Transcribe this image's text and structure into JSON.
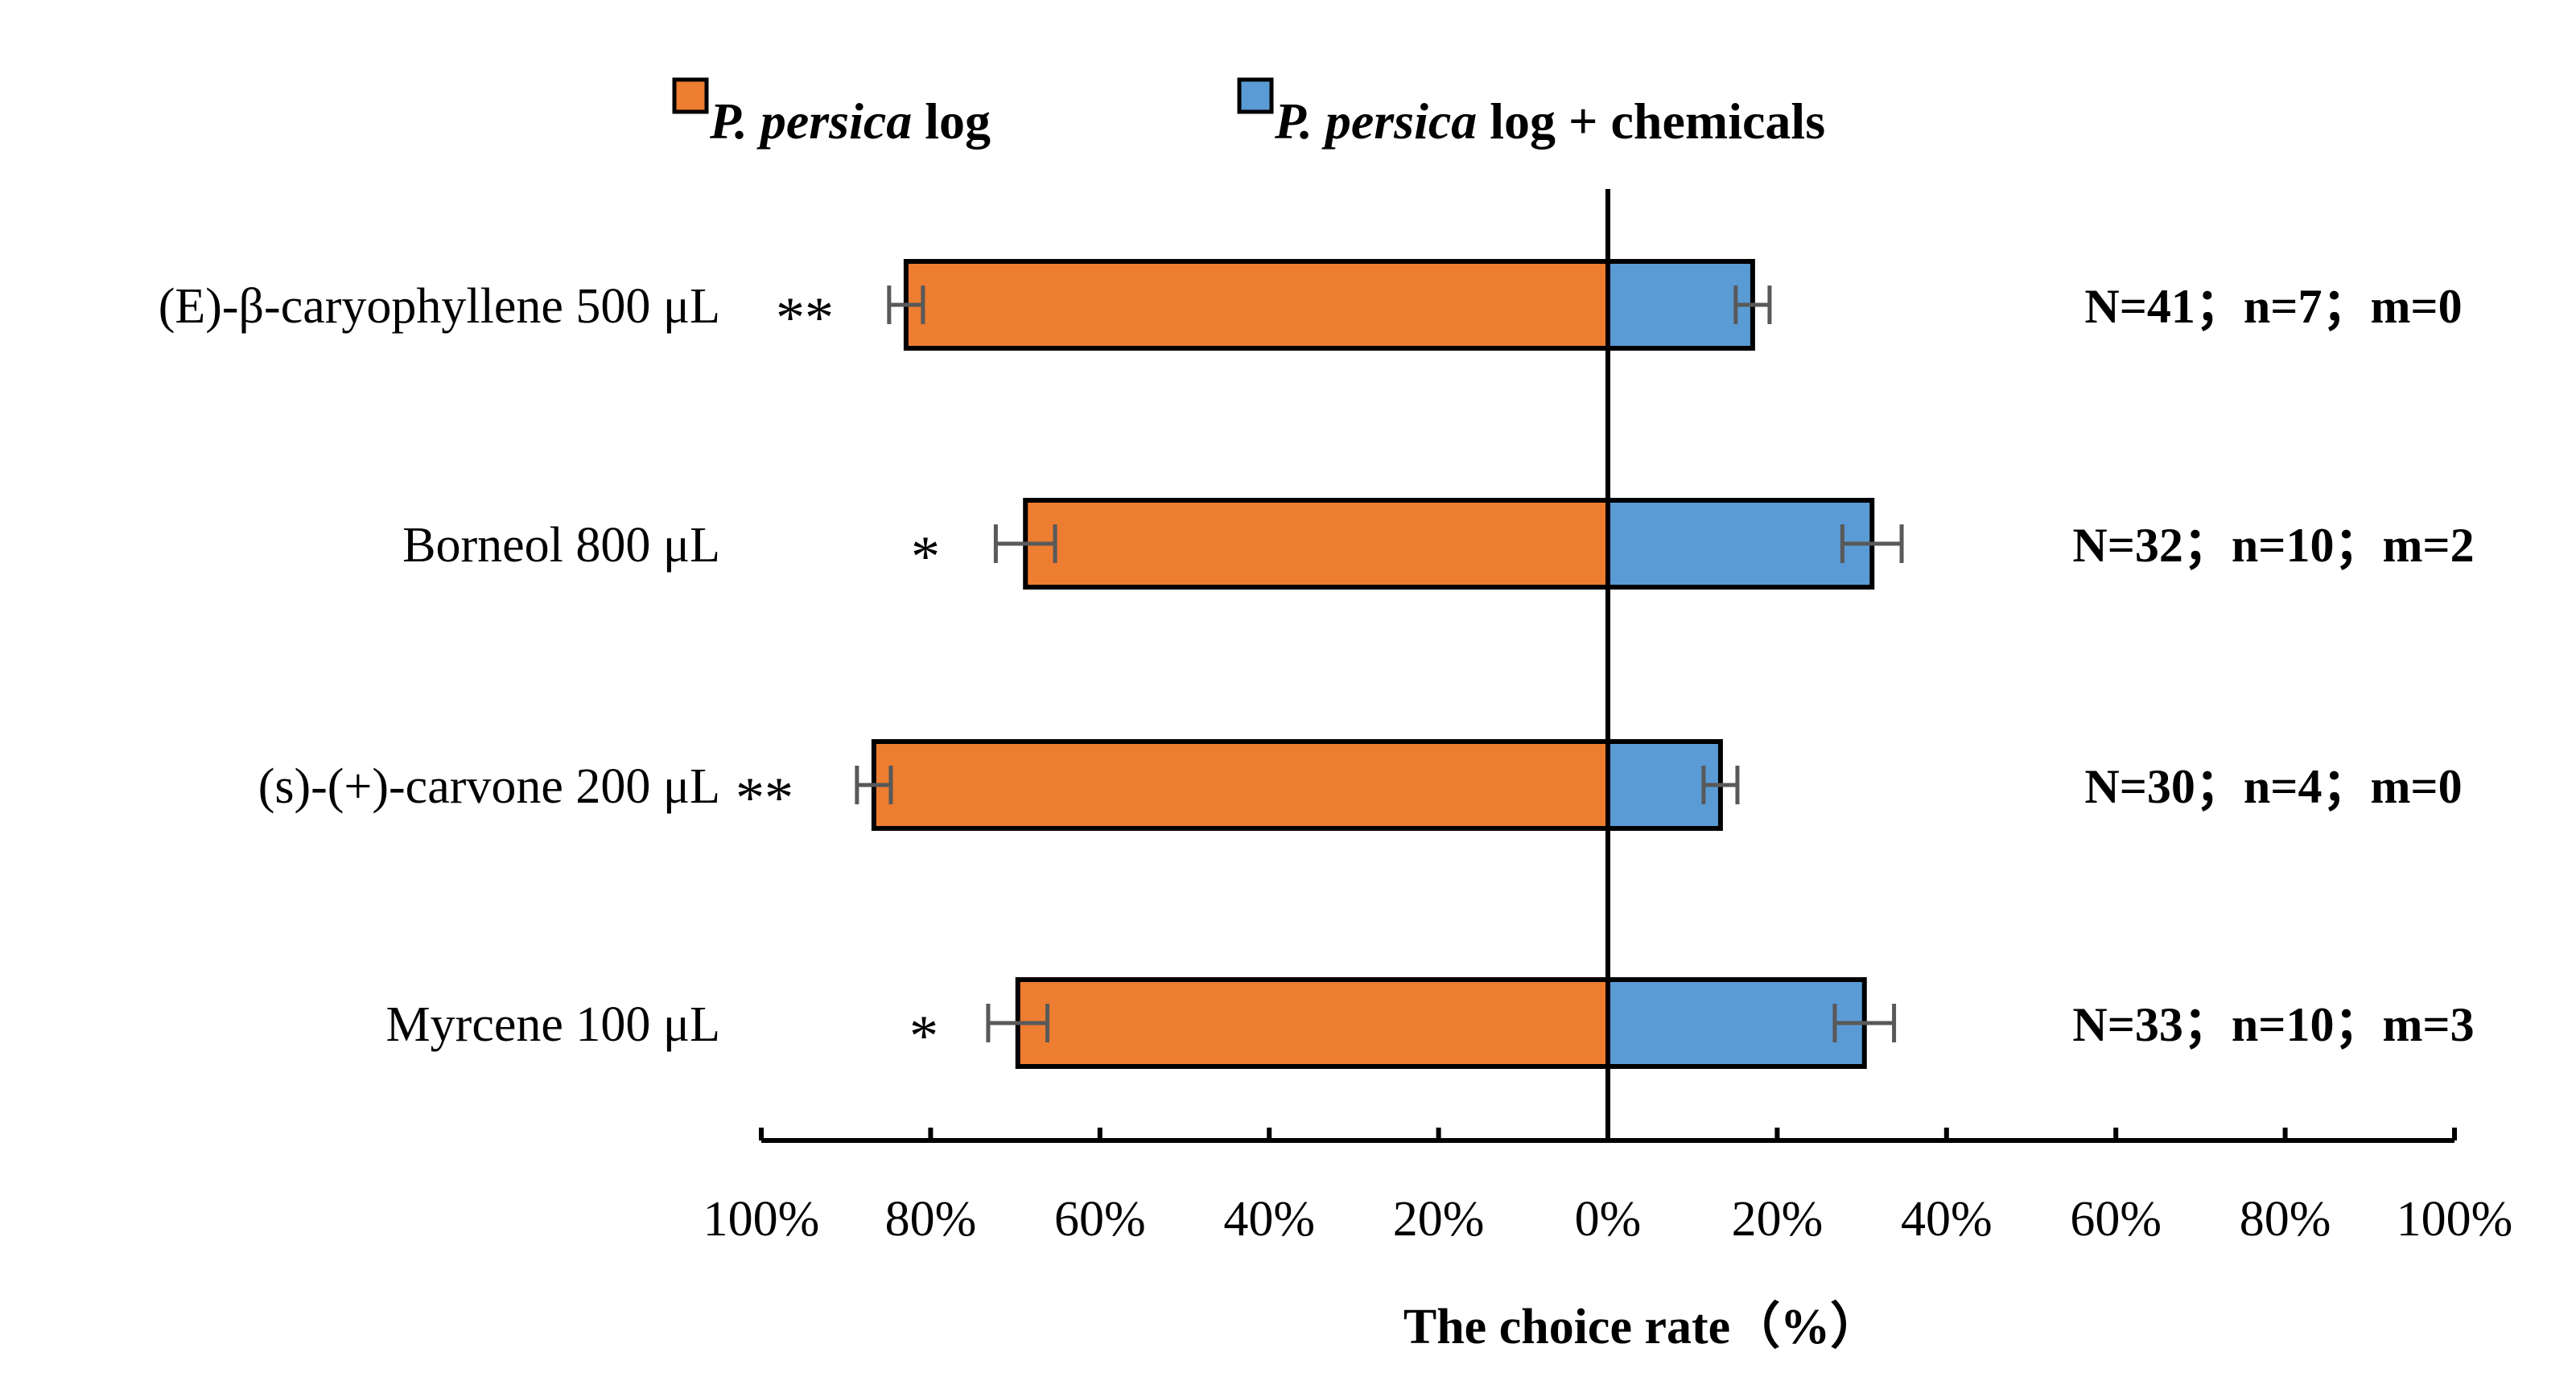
{
  "chart_data": {
    "type": "bar",
    "orientation": "horizontal-diverging",
    "title": "",
    "xlabel": "The choice rate（%）",
    "ylabel": "",
    "xlim": [
      -100,
      100
    ],
    "x_ticks": [
      -100,
      -80,
      -60,
      -40,
      -20,
      0,
      20,
      40,
      60,
      80,
      100
    ],
    "x_tick_labels": [
      "100%",
      "80%",
      "60%",
      "40%",
      "20%",
      "0%",
      "20%",
      "40%",
      "60%",
      "80%",
      "100%"
    ],
    "categories": [
      "(E)-β-caryophyllene 500 μL",
      "Borneol 800 μL",
      "(s)-(+)-carvone 200 μL",
      "Myrcene 100 μL"
    ],
    "series": [
      {
        "name_italic": "P. persica",
        "name_rest": " log",
        "color": "#ED7D31",
        "direction": "left",
        "values": [
          82.9,
          68.8,
          86.7,
          69.7
        ],
        "errors": [
          2.0,
          3.5,
          2.0,
          3.5
        ]
      },
      {
        "name_italic": "P. persica",
        "name_rest": " log + chemicals",
        "color": "#5B9BD5",
        "direction": "right",
        "values": [
          17.1,
          31.2,
          13.3,
          30.3
        ],
        "errors": [
          2.0,
          3.5,
          2.0,
          3.5
        ]
      }
    ],
    "significance": [
      "**",
      "*",
      "**",
      "*"
    ],
    "sample_info": [
      "N=41；n=7；m=0",
      "N=32；n=10；m=2",
      "N=30；n=4；m=0",
      "N=33；n=10；m=3"
    ],
    "legend_position": "top",
    "grid": false
  }
}
